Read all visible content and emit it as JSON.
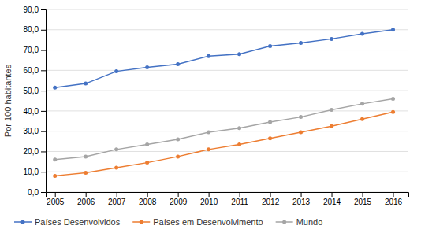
{
  "chart_data": {
    "type": "line",
    "x": [
      2005,
      2006,
      2007,
      2008,
      2009,
      2010,
      2011,
      2012,
      2013,
      2014,
      2015,
      2016
    ],
    "series": [
      {
        "name": "Países Desenvolvidos",
        "color": "#4472C4",
        "values": [
          51.5,
          53.5,
          59.5,
          61.5,
          63.0,
          67.0,
          68.0,
          72.0,
          73.5,
          75.5,
          78.0,
          80.0
        ]
      },
      {
        "name": "Países em Desenvolvimento",
        "color": "#ED7D31",
        "values": [
          8.0,
          9.5,
          12.0,
          14.5,
          17.5,
          21.0,
          23.5,
          26.5,
          29.5,
          32.5,
          36.0,
          39.5
        ]
      },
      {
        "name": "Mundo",
        "color": "#A5A5A5",
        "values": [
          16.0,
          17.5,
          21.0,
          23.5,
          26.0,
          29.5,
          31.5,
          34.5,
          37.0,
          40.5,
          43.5,
          46.0
        ]
      }
    ],
    "ylabel": "Por 100 habitantes",
    "xlim": [
      2004.7,
      2016.5
    ],
    "xticks": [
      2005,
      2006,
      2007,
      2008,
      2009,
      2010,
      2011,
      2012,
      2013,
      2014,
      2015,
      2016
    ],
    "ylim": [
      0,
      90
    ],
    "yticks": [
      {
        "value": 0,
        "label": "0,0"
      },
      {
        "value": 10,
        "label": "10,0"
      },
      {
        "value": 20,
        "label": "20,0"
      },
      {
        "value": 30,
        "label": "30,0"
      },
      {
        "value": 40,
        "label": "40,0"
      },
      {
        "value": 50,
        "label": "50,0"
      },
      {
        "value": 60,
        "label": "60,0"
      },
      {
        "value": 70,
        "label": "70,0"
      },
      {
        "value": 80,
        "label": "80,0"
      },
      {
        "value": 90,
        "label": "90,0"
      }
    ],
    "grid": true,
    "legend": "bottom",
    "marker": "circle"
  }
}
